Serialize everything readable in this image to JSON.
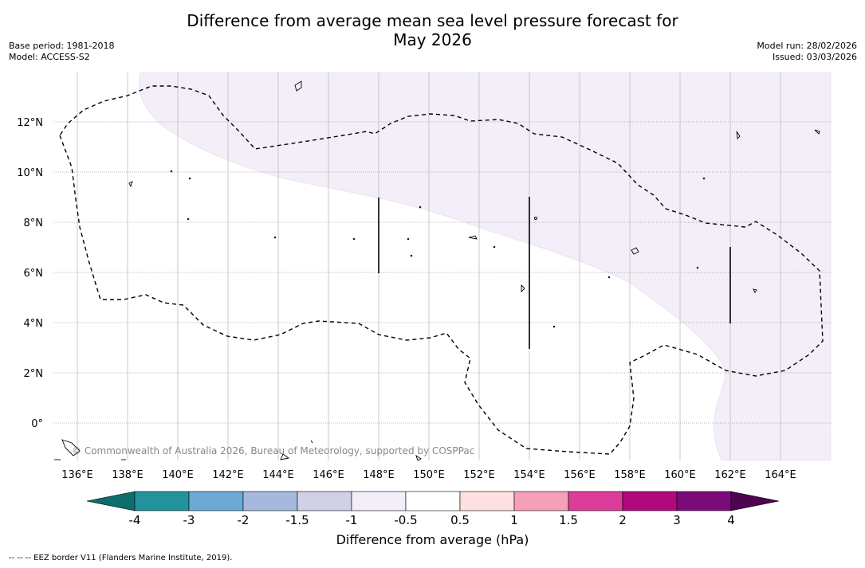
{
  "title": {
    "line1": "Difference from average mean sea level pressure forecast for",
    "line2": "May 2026"
  },
  "meta": {
    "base_period": "Base period: 1981-2018",
    "model": "Model: ACCESS-S2",
    "model_run": "Model run: 28/02/2026",
    "issued": "Issued: 03/03/2026"
  },
  "axes": {
    "lon_labels": [
      "136°E",
      "138°E",
      "140°E",
      "142°E",
      "144°E",
      "146°E",
      "148°E",
      "150°E",
      "152°E",
      "154°E",
      "156°E",
      "158°E",
      "160°E",
      "162°E",
      "164°E"
    ],
    "lat_labels": [
      "12°N",
      "10°N",
      "8°N",
      "6°N",
      "4°N",
      "2°N",
      "0°"
    ]
  },
  "copyright": "© Commonwealth of Australia 2026, Bureau of Meteorology, supported by COSPPac",
  "colorbar": {
    "title": "Difference from average (hPa)",
    "tick_labels": [
      "-4",
      "-3",
      "-2",
      "-1.5",
      "-1",
      "-0.5",
      "0.5",
      "1",
      "1.5",
      "2",
      "3",
      "4"
    ],
    "colors": [
      "#0d6e6e",
      "#23939b",
      "#6aaad4",
      "#a6b9dc",
      "#d0d0e6",
      "#f3eef7",
      "#ffffff",
      "#fde0e0",
      "#f5a0b8",
      "#dc3d9b",
      "#b0097b",
      "#7c0b7a",
      "#4d0550"
    ]
  },
  "legend": {
    "eez_note": "--  --  -- EEZ border V11 (Flanders Marine Institute, 2019)."
  }
}
